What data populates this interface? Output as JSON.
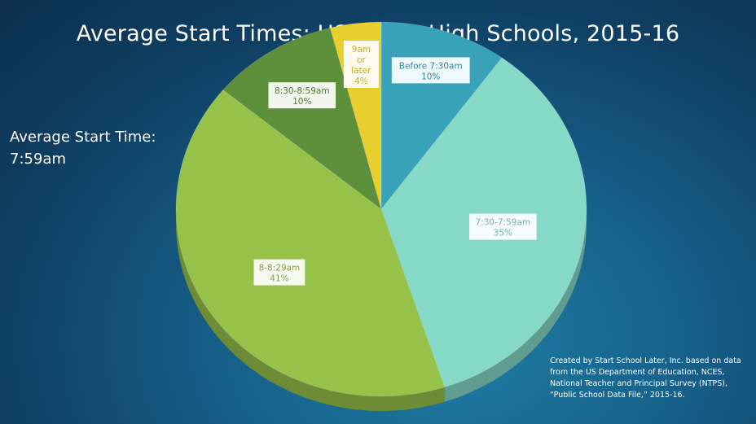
{
  "title": "Average Start Times: US Public High Schools, 2015-16",
  "average": {
    "line1": "Average Start Time:",
    "line2": "7:59am"
  },
  "source_note": {
    "line1": "Created by Start School Later, Inc. based on data",
    "line2": "from the US Department of Education, NCES,",
    "line3": "National Teacher and Principal Survey (NTPS),",
    "line4": "“Public School Data File,” 2015-16."
  },
  "chart_data": {
    "type": "pie",
    "title": "Average Start Times: US Public High Schools, 2015-16",
    "slices": [
      {
        "label": "Before 7:30am",
        "value": 10,
        "value_label": "10%",
        "color": "#37a2b8",
        "label_lines": [
          "Before 7:30am"
        ]
      },
      {
        "label": "7:30-7:59am",
        "value": 35,
        "value_label": "35%",
        "color": "#86d9c7",
        "label_lines": [
          "7:30-7:59am"
        ]
      },
      {
        "label": "8-8:29am",
        "value": 41,
        "value_label": "41%",
        "color": "#97c24a",
        "label_lines": [
          "8-8:29am"
        ]
      },
      {
        "label": "8:30-8:59am",
        "value": 10,
        "value_label": "10%",
        "color": "#5e8f3a",
        "label_lines": [
          "8:30-8:59am"
        ]
      },
      {
        "label": "9am or later",
        "value": 4,
        "value_label": "4%",
        "color": "#e8cf2e",
        "label_lines": [
          "9am",
          "or",
          "later"
        ]
      }
    ],
    "style": "3d"
  }
}
